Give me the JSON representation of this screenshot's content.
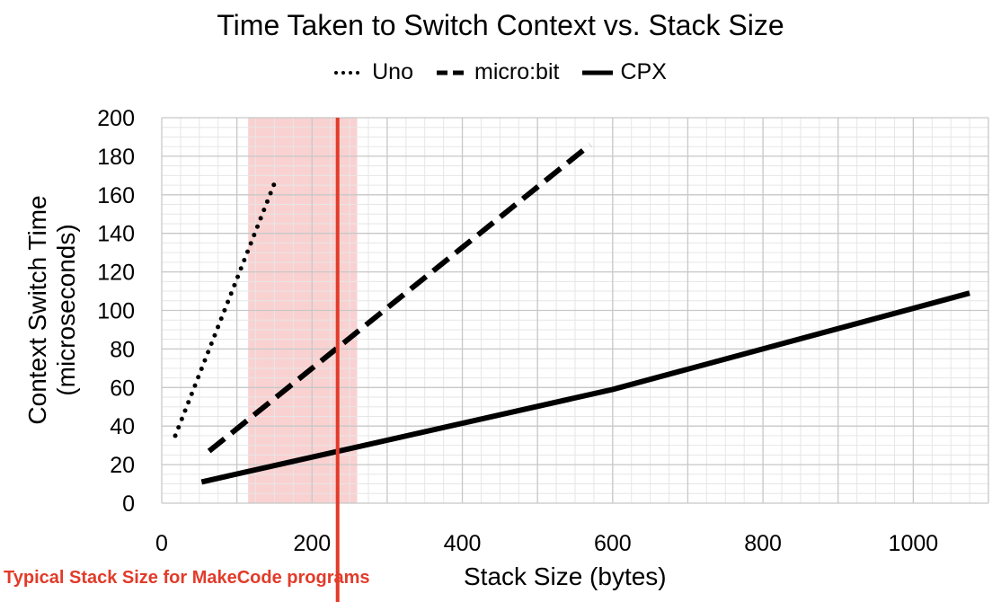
{
  "chart_data": {
    "type": "line",
    "title": "Time Taken to Switch Context vs. Stack Size",
    "xlabel": "Stack Size (bytes)",
    "ylabel_line1": "Context Switch Time",
    "ylabel_line2": "(microseconds)",
    "xlim": [
      0,
      1100
    ],
    "ylim": [
      0,
      200
    ],
    "x_ticks": [
      0,
      200,
      400,
      600,
      800,
      1000
    ],
    "y_ticks": [
      0,
      20,
      40,
      60,
      80,
      100,
      120,
      140,
      160,
      180,
      200
    ],
    "grid": true,
    "legend_position": "top",
    "series": [
      {
        "name": "Uno",
        "style": "dotted",
        "x": [
          18,
          150
        ],
        "y": [
          35,
          166
        ]
      },
      {
        "name": "micro:bit",
        "style": "dashed",
        "x": [
          63,
          570
        ],
        "y": [
          27,
          186
        ]
      },
      {
        "name": "CPX",
        "style": "solid",
        "x": [
          53,
          600,
          1075
        ],
        "y": [
          11,
          59,
          109
        ]
      }
    ],
    "highlight_band": {
      "x": [
        115,
        260
      ],
      "color": "#f9c9c9"
    },
    "reference_line": {
      "x": 234,
      "color": "#e23b2a"
    },
    "annotation": {
      "text": "Typical Stack Size for MakeCode programs",
      "color": "#e23b2a"
    }
  }
}
